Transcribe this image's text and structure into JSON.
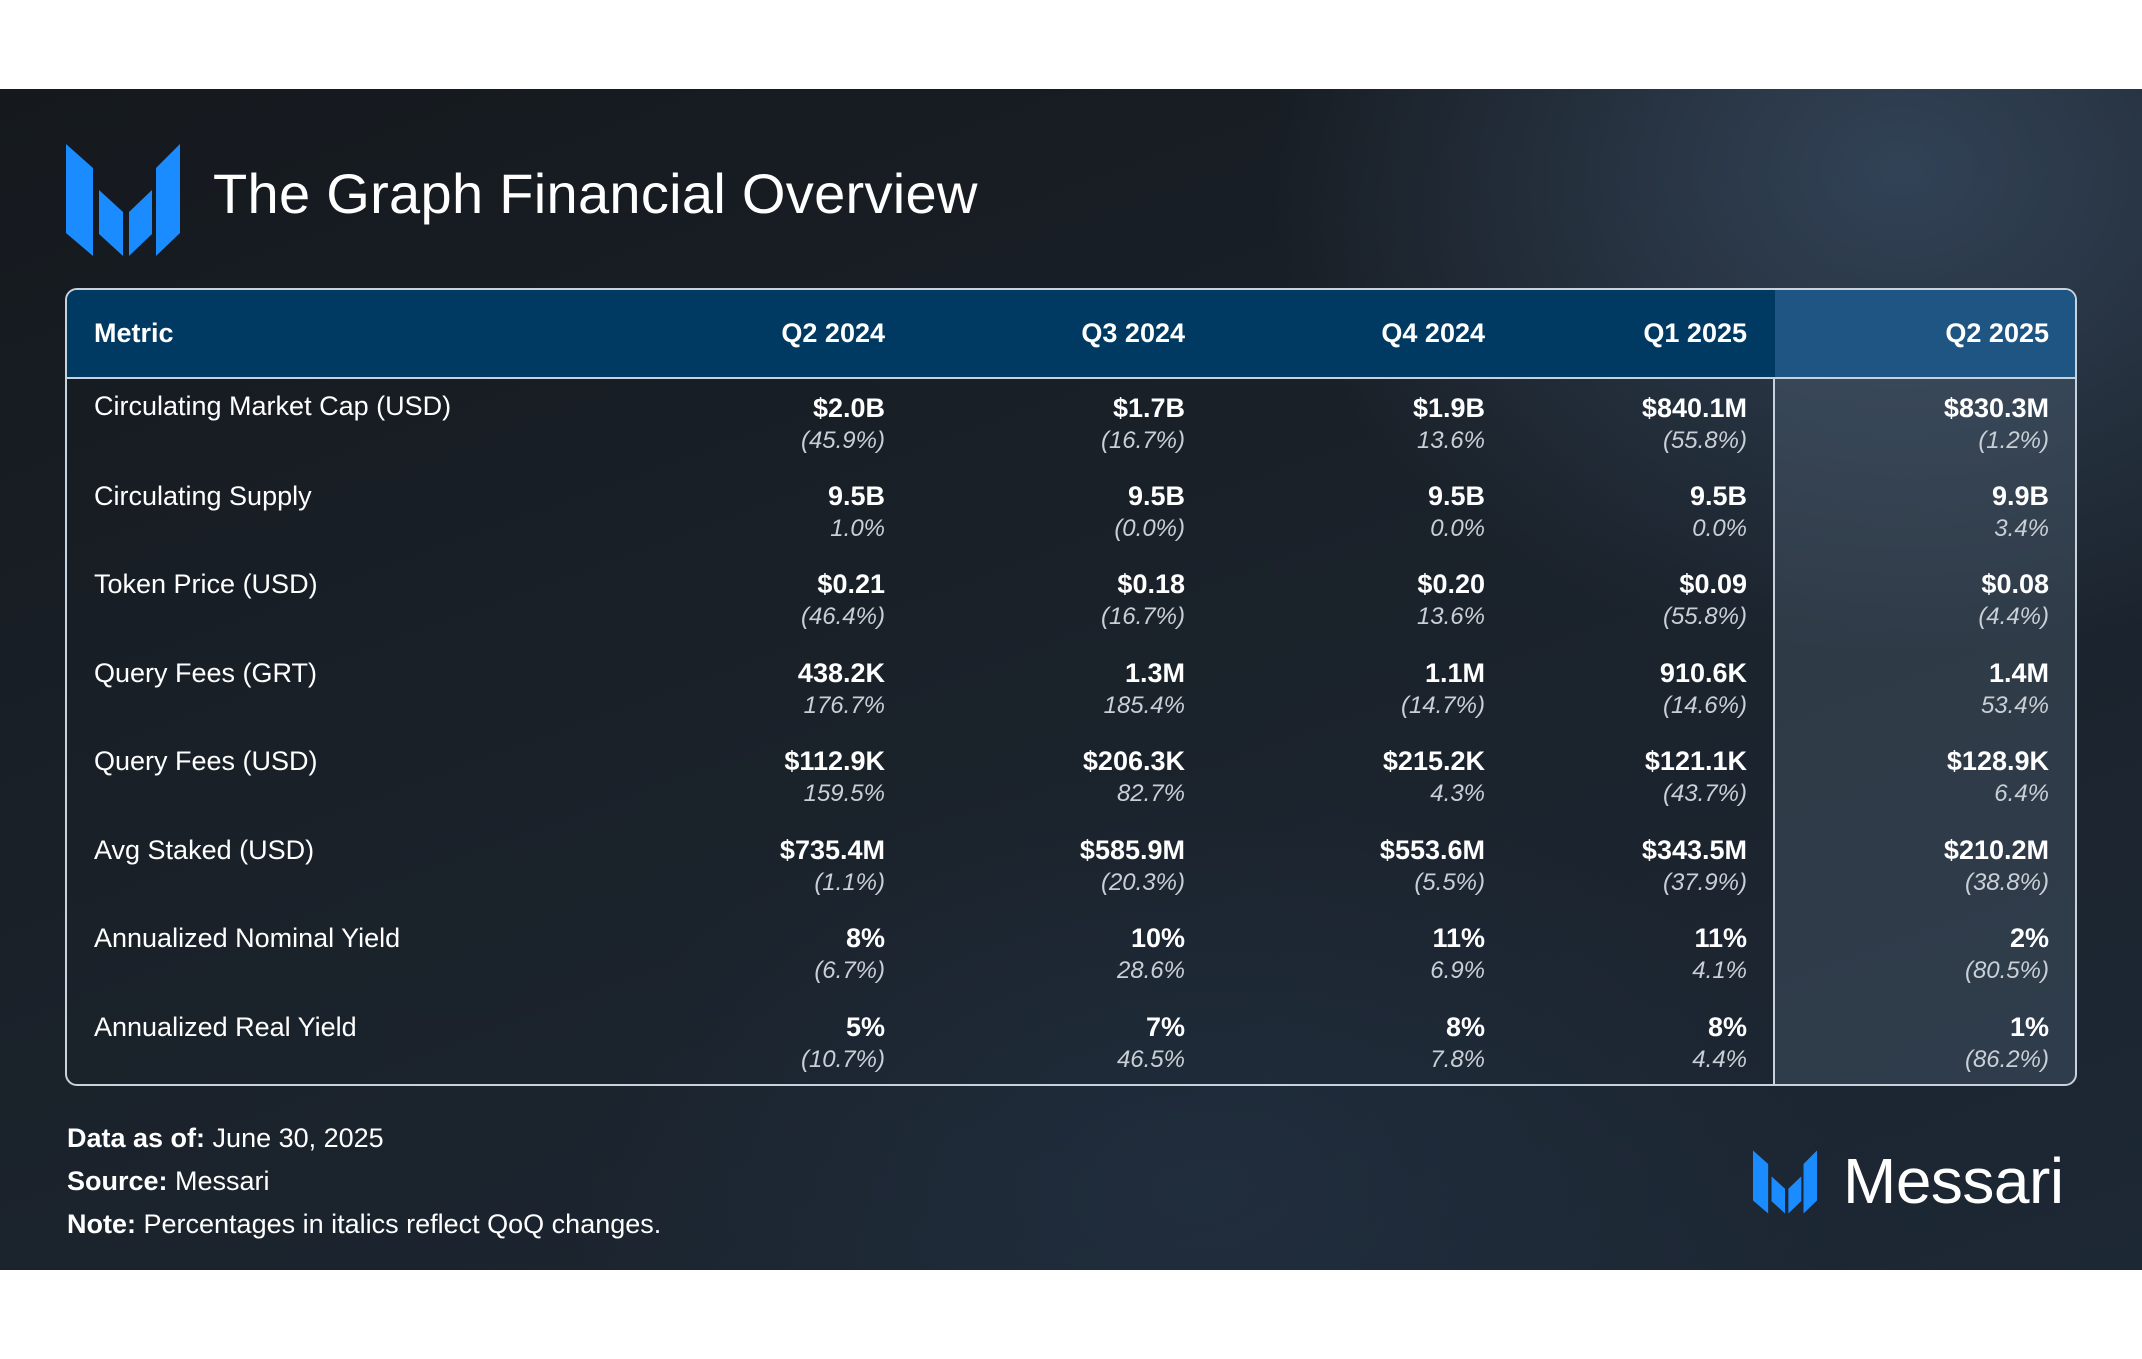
{
  "title": "The Graph Financial Overview",
  "colors": {
    "accent": "#1a8cff",
    "header_bg": "#003a63",
    "highlight_header_bg": "#1f5582",
    "background": "#1a2129"
  },
  "brand": {
    "name": "Messari",
    "logo_icon": "messari-m-logo-icon"
  },
  "footer": {
    "data_as_of_label": "Data as of:",
    "data_as_of_value": " June 30, 2025",
    "source_label": "Source:",
    "source_value": " Messari",
    "note_label": "Note:",
    "note_value": " Percentages in italics reflect QoQ changes."
  },
  "chart_data": {
    "type": "table",
    "title": "The Graph Financial Overview",
    "highlighted_column": "Q2 2025",
    "columns": [
      "Metric",
      "Q2 2024",
      "Q3 2024",
      "Q4 2024",
      "Q1 2025",
      "Q2 2025"
    ],
    "rows": [
      {
        "metric": "Circulating Market Cap (USD)",
        "values": [
          "$2.0B",
          "$1.7B",
          "$1.9B",
          "$840.1M",
          "$830.3M"
        ],
        "changes": [
          "(45.9%)",
          "(16.7%)",
          "13.6%",
          "(55.8%)",
          "(1.2%)"
        ]
      },
      {
        "metric": "Circulating Supply",
        "values": [
          "9.5B",
          "9.5B",
          "9.5B",
          "9.5B",
          "9.9B"
        ],
        "changes": [
          "1.0%",
          "(0.0%)",
          "0.0%",
          "0.0%",
          "3.4%"
        ]
      },
      {
        "metric": "Token Price (USD)",
        "values": [
          "$0.21",
          "$0.18",
          "$0.20",
          "$0.09",
          "$0.08"
        ],
        "changes": [
          "(46.4%)",
          "(16.7%)",
          "13.6%",
          "(55.8%)",
          "(4.4%)"
        ]
      },
      {
        "metric": "Query Fees (GRT)",
        "values": [
          "438.2K",
          "1.3M",
          "1.1M",
          "910.6K",
          "1.4M"
        ],
        "changes": [
          "176.7%",
          "185.4%",
          "(14.7%)",
          "(14.6%)",
          "53.4%"
        ]
      },
      {
        "metric": "Query Fees (USD)",
        "values": [
          "$112.9K",
          "$206.3K",
          "$215.2K",
          "$121.1K",
          "$128.9K"
        ],
        "changes": [
          "159.5%",
          "82.7%",
          "4.3%",
          "(43.7%)",
          "6.4%"
        ]
      },
      {
        "metric": "Avg Staked (USD)",
        "values": [
          "$735.4M",
          "$585.9M",
          "$553.6M",
          "$343.5M",
          "$210.2M"
        ],
        "changes": [
          "(1.1%)",
          "(20.3%)",
          "(5.5%)",
          "(37.9%)",
          "(38.8%)"
        ]
      },
      {
        "metric": "Annualized Nominal Yield",
        "values": [
          "8%",
          "10%",
          "11%",
          "11%",
          "2%"
        ],
        "changes": [
          "(6.7%)",
          "28.6%",
          "6.9%",
          "4.1%",
          "(80.5%)"
        ]
      },
      {
        "metric": "Annualized Real Yield",
        "values": [
          "5%",
          "7%",
          "8%",
          "8%",
          "1%"
        ],
        "changes": [
          "(10.7%)",
          "46.5%",
          "7.8%",
          "4.4%",
          "(86.2%)"
        ]
      }
    ]
  }
}
